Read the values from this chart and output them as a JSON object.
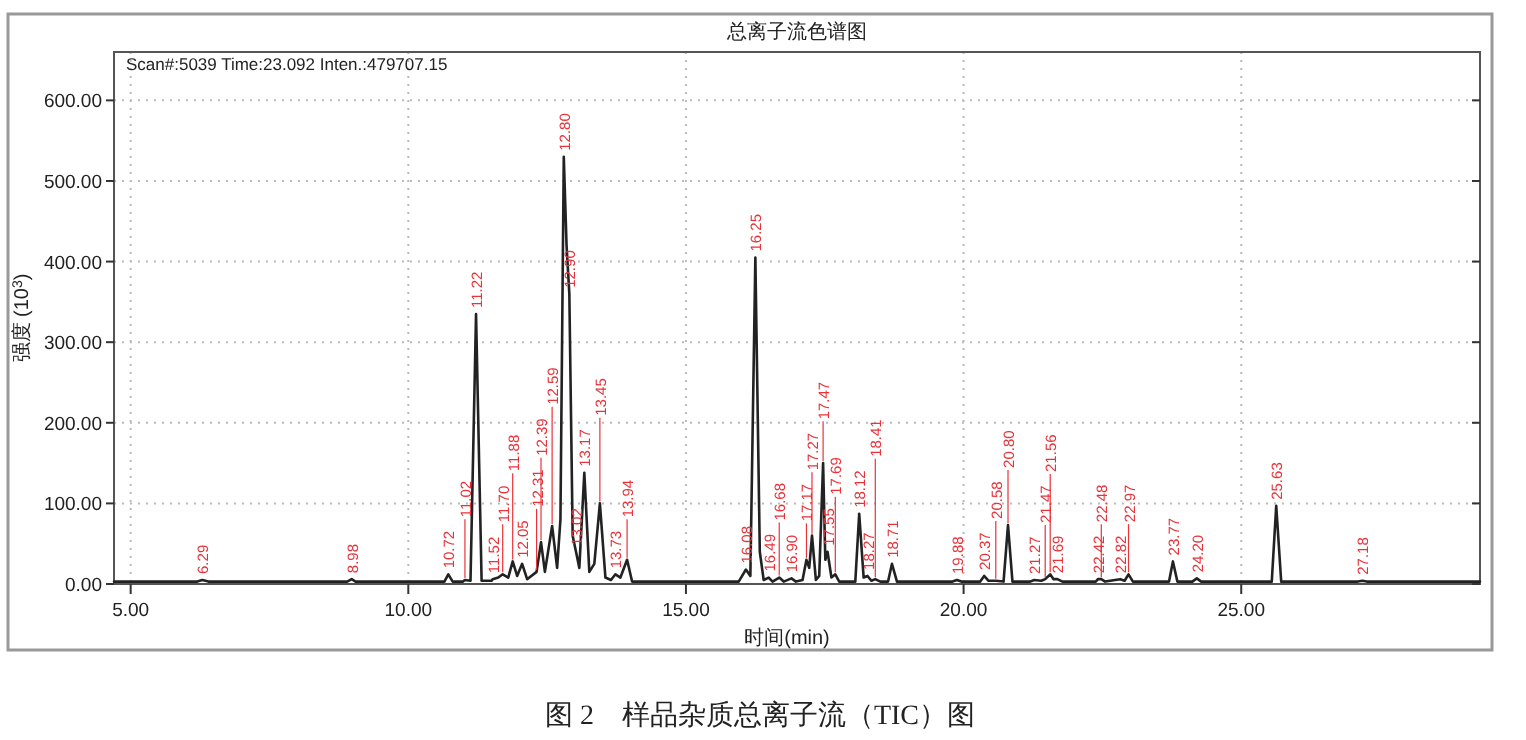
{
  "chart_data": {
    "type": "line",
    "title": "总离子流色谱图",
    "xlabel": "时间(min)",
    "ylabel": "强度 (10$^{3}$)",
    "xlim": [
      4.7,
      29.3
    ],
    "ylim": [
      0,
      660
    ],
    "xticks": [
      {
        "value": 5,
        "label": "5.00"
      },
      {
        "value": 10,
        "label": "10.00"
      },
      {
        "value": 15,
        "label": "15.00"
      },
      {
        "value": 20,
        "label": "20.00"
      },
      {
        "value": 25,
        "label": "25.00"
      }
    ],
    "yticks": [
      {
        "value": 0,
        "label": "0.00"
      },
      {
        "value": 100,
        "label": "100.00"
      },
      {
        "value": 200,
        "label": "200.00"
      },
      {
        "value": 300,
        "label": "300.00"
      },
      {
        "value": 400,
        "label": "400.00"
      },
      {
        "value": 500,
        "label": "500.00"
      },
      {
        "value": 600,
        "label": "600.00"
      }
    ],
    "grid": true,
    "marker": "none",
    "line_style": "solid",
    "series": [
      {
        "color": "#222222",
        "x": [
          4.7,
          6.2,
          6.29,
          6.4,
          8.9,
          8.98,
          9.05,
          10.65,
          10.72,
          10.8,
          10.98,
          11.02,
          11.12,
          11.22,
          11.32,
          11.5,
          11.52,
          11.62,
          11.7,
          11.8,
          11.88,
          11.96,
          12.05,
          12.14,
          12.31,
          12.39,
          12.46,
          12.59,
          12.68,
          12.74,
          12.8,
          12.85,
          12.9,
          12.96,
          13.02,
          13.08,
          13.17,
          13.26,
          13.35,
          13.45,
          13.55,
          13.65,
          13.73,
          13.82,
          13.94,
          14.03,
          15.95,
          16.08,
          16.16,
          16.25,
          16.33,
          16.4,
          16.49,
          16.56,
          16.68,
          16.76,
          16.9,
          16.98,
          17.1,
          17.17,
          17.22,
          17.27,
          17.34,
          17.4,
          17.47,
          17.51,
          17.55,
          17.62,
          17.69,
          17.76,
          18.05,
          18.12,
          18.2,
          18.27,
          18.34,
          18.41,
          18.5,
          18.64,
          18.71,
          18.8,
          19.8,
          19.88,
          19.96,
          20.3,
          20.37,
          20.45,
          20.58,
          20.72,
          20.8,
          20.88,
          21.2,
          21.27,
          21.4,
          21.47,
          21.56,
          21.62,
          21.69,
          21.78,
          22.38,
          22.42,
          22.48,
          22.55,
          22.82,
          22.9,
          22.97,
          23.05,
          23.7,
          23.77,
          23.85,
          24.12,
          24.2,
          24.28,
          25.55,
          25.63,
          25.72,
          27.1,
          27.18,
          27.26,
          29.3
        ],
        "values": [
          3,
          3,
          5,
          3,
          3,
          6,
          3,
          3,
          12,
          3,
          3,
          5,
          4,
          335,
          4,
          4,
          6,
          8,
          12,
          8,
          28,
          10,
          25,
          6,
          15,
          52,
          15,
          72,
          20,
          80,
          530,
          420,
          360,
          60,
          40,
          20,
          138,
          15,
          25,
          100,
          8,
          5,
          12,
          8,
          30,
          3,
          3,
          18,
          10,
          405,
          40,
          5,
          8,
          3,
          8,
          3,
          7,
          3,
          5,
          30,
          20,
          60,
          5,
          10,
          150,
          30,
          40,
          8,
          12,
          3,
          3,
          87,
          8,
          10,
          4,
          6,
          3,
          3,
          25,
          3,
          3,
          5,
          3,
          3,
          10,
          4,
          4,
          3,
          73,
          3,
          3,
          5,
          4,
          6,
          12,
          6,
          6,
          3,
          3,
          6,
          6,
          3,
          6,
          4,
          12,
          3,
          3,
          28,
          3,
          3,
          7,
          3,
          3,
          97,
          3,
          3,
          4,
          3,
          3
        ]
      }
    ],
    "annotations": [
      "Scan#:5039  Time:23.092  Inten.:479707.15",
      "图 2　样品杂质总离子流（TIC）图",
      {
        "text": "6.29",
        "x": 6.29,
        "y": 5
      },
      {
        "text": "8.98",
        "x": 8.98,
        "y": 6
      },
      {
        "text": "10.72",
        "x": 10.72,
        "y": 12
      },
      {
        "text": "11.02",
        "x": 11.02,
        "y": 5
      },
      {
        "text": "11.22",
        "x": 11.22,
        "y": 335
      },
      {
        "text": "11.52",
        "x": 11.52,
        "y": 6
      },
      {
        "text": "11.70",
        "x": 11.7,
        "y": 12
      },
      {
        "text": "11.88",
        "x": 11.88,
        "y": 28
      },
      {
        "text": "12.05",
        "x": 12.05,
        "y": 25
      },
      {
        "text": "12.31",
        "x": 12.31,
        "y": 15
      },
      {
        "text": "12.39",
        "x": 12.39,
        "y": 52
      },
      {
        "text": "12.59",
        "x": 12.59,
        "y": 72
      },
      {
        "text": "12.80",
        "x": 12.8,
        "y": 530
      },
      {
        "text": "12.90",
        "x": 12.9,
        "y": 360
      },
      {
        "text": "13.02",
        "x": 13.02,
        "y": 40
      },
      {
        "text": "13.17",
        "x": 13.17,
        "y": 138
      },
      {
        "text": "13.45",
        "x": 13.45,
        "y": 100
      },
      {
        "text": "13.73",
        "x": 13.73,
        "y": 12
      },
      {
        "text": "13.94",
        "x": 13.94,
        "y": 30
      },
      {
        "text": "16.08",
        "x": 16.08,
        "y": 18
      },
      {
        "text": "16.25",
        "x": 16.25,
        "y": 405
      },
      {
        "text": "16.49",
        "x": 16.49,
        "y": 8
      },
      {
        "text": "16.68",
        "x": 16.68,
        "y": 8
      },
      {
        "text": "16.90",
        "x": 16.9,
        "y": 7
      },
      {
        "text": "17.17",
        "x": 17.17,
        "y": 30
      },
      {
        "text": "17.27",
        "x": 17.27,
        "y": 60
      },
      {
        "text": "17.47",
        "x": 17.47,
        "y": 150
      },
      {
        "text": "17.55",
        "x": 17.55,
        "y": 40
      },
      {
        "text": "17.69",
        "x": 17.69,
        "y": 12
      },
      {
        "text": "18.12",
        "x": 18.12,
        "y": 87
      },
      {
        "text": "18.27",
        "x": 18.27,
        "y": 10
      },
      {
        "text": "18.41",
        "x": 18.41,
        "y": 6
      },
      {
        "text": "18.71",
        "x": 18.71,
        "y": 25
      },
      {
        "text": "19.88",
        "x": 19.88,
        "y": 5
      },
      {
        "text": "20.37",
        "x": 20.37,
        "y": 10
      },
      {
        "text": "20.58",
        "x": 20.58,
        "y": 4
      },
      {
        "text": "20.80",
        "x": 20.8,
        "y": 73
      },
      {
        "text": "21.27",
        "x": 21.27,
        "y": 5
      },
      {
        "text": "21.47",
        "x": 21.47,
        "y": 6
      },
      {
        "text": "21.56",
        "x": 21.56,
        "y": 12
      },
      {
        "text": "21.69",
        "x": 21.69,
        "y": 6
      },
      {
        "text": "22.42",
        "x": 22.42,
        "y": 6
      },
      {
        "text": "22.48",
        "x": 22.48,
        "y": 6
      },
      {
        "text": "22.82",
        "x": 22.82,
        "y": 6
      },
      {
        "text": "22.97",
        "x": 22.97,
        "y": 12
      },
      {
        "text": "23.77",
        "x": 23.77,
        "y": 28
      },
      {
        "text": "24.20",
        "x": 24.2,
        "y": 7
      },
      {
        "text": "25.63",
        "x": 25.63,
        "y": 97
      },
      {
        "text": "27.18",
        "x": 27.18,
        "y": 4
      }
    ]
  }
}
